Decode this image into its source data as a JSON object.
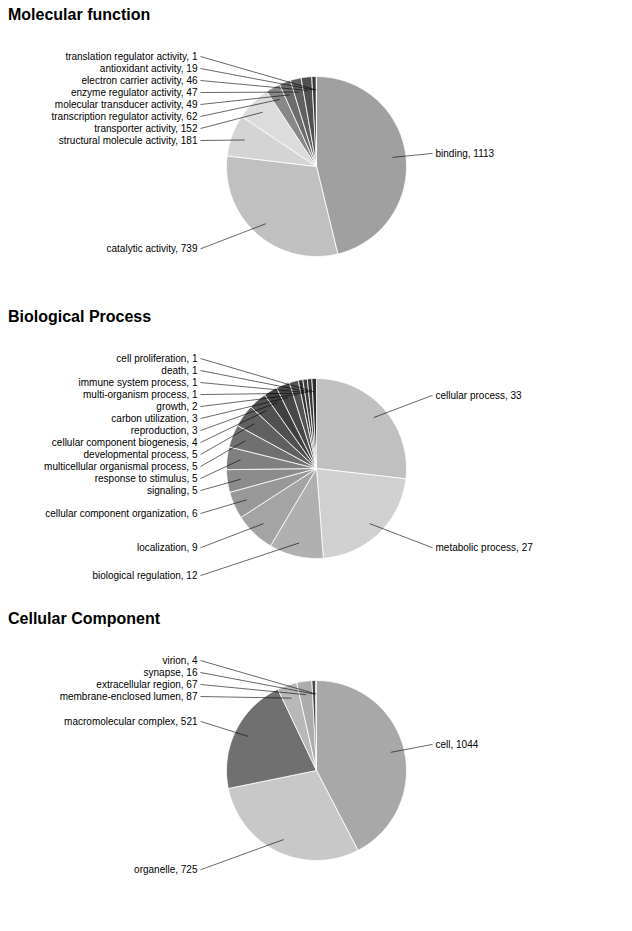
{
  "chart_data": [
    {
      "type": "pie",
      "title": "Molecular function",
      "categories": [
        "binding, 1113",
        "catalytic activity, 739",
        "structural molecule activity, 181",
        "transporter activity, 152",
        "transcription regulator activity, 62",
        "molecular transducer activity, 49",
        "enzyme regulator activity, 47",
        "electron carrier activity, 46",
        "antioxidant activity, 19",
        "translation regulator activity, 1"
      ],
      "values": [
        1113,
        739,
        181,
        152,
        62,
        49,
        47,
        46,
        19,
        1
      ],
      "colors": [
        "#A0A0A0",
        "#C0C0C0",
        "#D4D4D4",
        "#DCDCDC",
        "#888888",
        "#6C6C6C",
        "#606060",
        "#505050",
        "#383838",
        "#282828"
      ]
    },
    {
      "type": "pie",
      "title": "Biological Process",
      "categories": [
        "cellular process, 33",
        "metabolic process, 27",
        "biological regulation, 12",
        "localization, 9",
        "cellular component organization, 6",
        "signaling, 5",
        "response to stimulus, 5",
        "multicellular organismal process, 5",
        "developmental process, 5",
        "cellular component biogenesis, 4",
        "reproduction, 3",
        "carbon utilization, 3",
        "growth, 2",
        "multi-organism process, 1",
        "immune system process, 1",
        "death, 1",
        "cell proliferation, 1"
      ],
      "values": [
        33,
        27,
        12,
        9,
        6,
        5,
        5,
        5,
        5,
        4,
        3,
        3,
        2,
        1,
        1,
        1,
        1
      ],
      "colors": [
        "#C0C0C0",
        "#D0D0D0",
        "#B0B0B0",
        "#A4A4A4",
        "#989898",
        "#8C8C8C",
        "#808080",
        "#707070",
        "#606060",
        "#505050",
        "#404040",
        "#484848",
        "#545454",
        "#343434",
        "#3C3C3C",
        "#383838",
        "#2C2C2C"
      ]
    },
    {
      "type": "pie",
      "title": "Cellular Component",
      "categories": [
        "cell, 1044",
        "organelle, 725",
        "macromolecular complex, 521",
        "membrane-enclosed lumen, 87",
        "extracellular region, 67",
        "synapse, 16",
        "virion, 4"
      ],
      "values": [
        1044,
        725,
        521,
        87,
        67,
        16,
        4
      ],
      "colors": [
        "#A8A8A8",
        "#C8C8C8",
        "#707070",
        "#B8B8B8",
        "#ACACAC",
        "#484848",
        "#383838"
      ]
    }
  ]
}
